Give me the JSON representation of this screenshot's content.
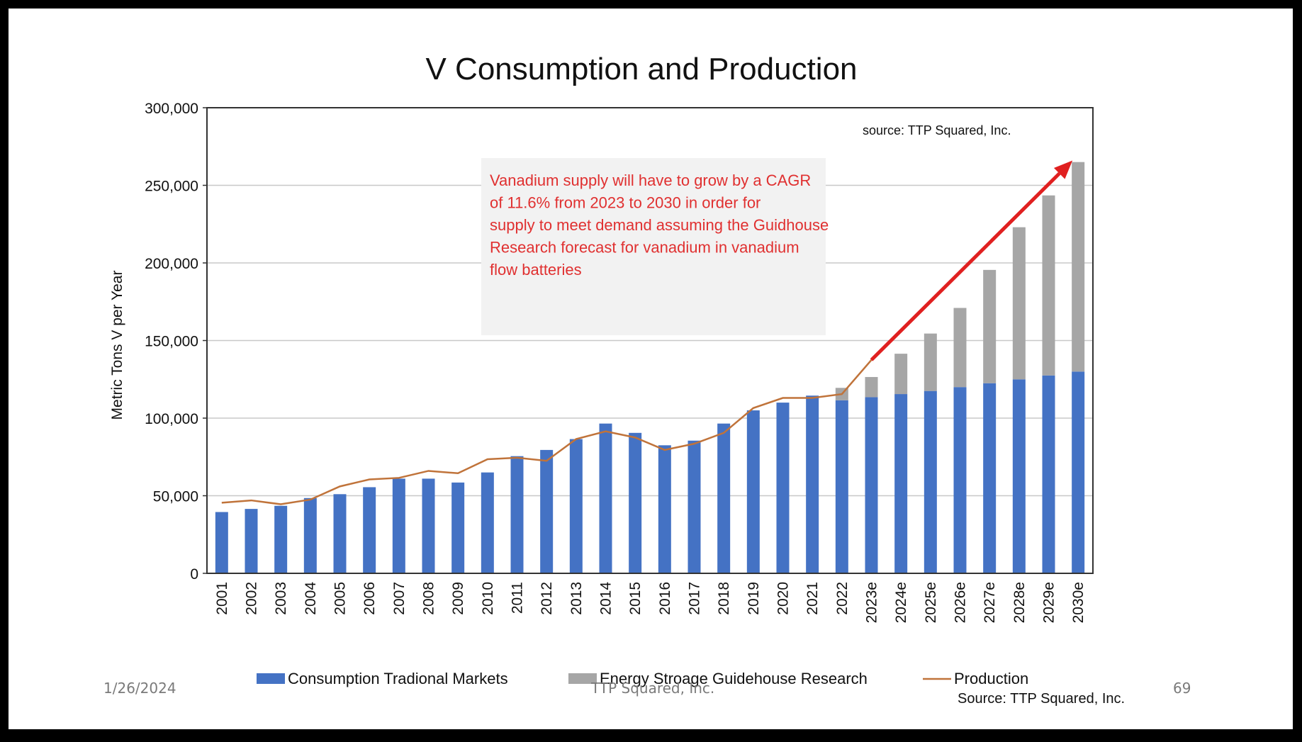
{
  "slide": {
    "footer_date": "1/26/2024",
    "footer_company": "TTP Squared, Inc.",
    "page_number": "69",
    "bottom_source": "Source:  TTP Squared, Inc."
  },
  "chart_data": {
    "type": "bar",
    "stacked": true,
    "title": "V Consumption and Production",
    "xlabel": "",
    "ylabel": "Metric Tons V per Year",
    "ylim": [
      0,
      300000
    ],
    "yticks": [
      0,
      50000,
      100000,
      150000,
      200000,
      250000,
      300000
    ],
    "ytick_labels": [
      "0",
      "50,000",
      "100,000",
      "150,000",
      "200,000",
      "250,000",
      "300,000"
    ],
    "grid": true,
    "legend_position": "bottom",
    "categories": [
      "2001",
      "2002",
      "2003",
      "2004",
      "2005",
      "2006",
      "2007",
      "2008",
      "2009",
      "2010",
      "2011",
      "2012",
      "2013",
      "2014",
      "2015",
      "2016",
      "2017",
      "2018",
      "2019",
      "2020",
      "2021",
      "2022",
      "2023e",
      "2024e",
      "2025e",
      "2026e",
      "2027e",
      "2028e",
      "2029e",
      "2030e"
    ],
    "series": [
      {
        "name": "Consumption Tradional Markets",
        "kind": "bar",
        "color": "#4472c4",
        "values": [
          39500,
          41500,
          43500,
          48500,
          51000,
          55500,
          61000,
          61000,
          58500,
          65000,
          75500,
          79500,
          86500,
          96500,
          90500,
          82500,
          85500,
          96500,
          105000,
          110000,
          114500,
          111500,
          113500,
          115500,
          117500,
          120000,
          122500,
          125000,
          127500,
          130000
        ]
      },
      {
        "name": "Energy Stroage Guidehouse Research",
        "kind": "bar",
        "color": "#a6a6a6",
        "values": [
          0,
          0,
          0,
          0,
          0,
          0,
          0,
          0,
          0,
          0,
          0,
          0,
          0,
          0,
          0,
          0,
          0,
          0,
          0,
          0,
          0,
          8000,
          13000,
          26000,
          37000,
          51000,
          73000,
          98000,
          116000,
          135000
        ]
      },
      {
        "name": "Production",
        "kind": "line",
        "color": "#c0733a",
        "values": [
          45500,
          47000,
          44500,
          47500,
          56000,
          60500,
          61500,
          66000,
          64500,
          73500,
          74500,
          72500,
          86500,
          91500,
          87500,
          79500,
          83500,
          90500,
          106500,
          113000,
          113000,
          115500,
          137500,
          null,
          null,
          null,
          null,
          null,
          null,
          null
        ]
      }
    ],
    "annotations": {
      "source_note": "source:  TTP Squared, Inc.",
      "callout": "Vanadium supply will have to grow by a CAGR of 11.6% from 2023 to 2030 in order for supply to meet demand assuming the Guidhouse Research forecast for vanadium in vanadium flow batteries",
      "callout_color": "#e03030",
      "arrow": {
        "from": [
          "2023e",
          137500
        ],
        "to": [
          "2030e",
          266000
        ],
        "color": "#e02020"
      }
    }
  }
}
